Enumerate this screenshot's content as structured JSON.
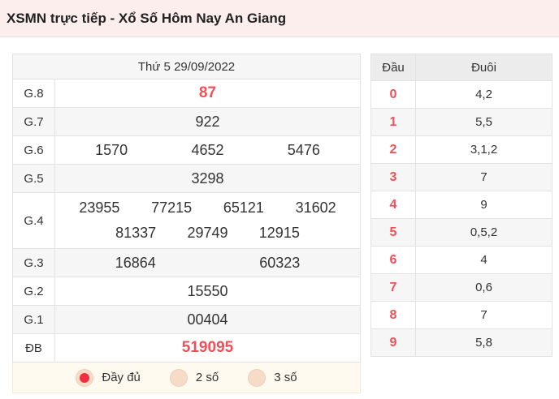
{
  "header": {
    "title": "XSMN trực tiếp - Xổ Số Hôm Nay An Giang"
  },
  "results": {
    "date": "Thứ 5 29/09/2022",
    "prizes": [
      {
        "label": "G.8",
        "numbers": [
          "87"
        ]
      },
      {
        "label": "G.7",
        "numbers": [
          "922"
        ]
      },
      {
        "label": "G.6",
        "numbers": [
          "1570",
          "4652",
          "5476"
        ]
      },
      {
        "label": "G.5",
        "numbers": [
          "3298"
        ]
      },
      {
        "label": "G.4",
        "numbers": [
          "23955",
          "77215",
          "65121",
          "31602",
          "81337",
          "29749",
          "12915"
        ]
      },
      {
        "label": "G.3",
        "numbers": [
          "16864",
          "60323"
        ]
      },
      {
        "label": "G.2",
        "numbers": [
          "15550"
        ]
      },
      {
        "label": "G.1",
        "numbers": [
          "00404"
        ]
      },
      {
        "label": "ĐB",
        "numbers": [
          "519095"
        ]
      }
    ],
    "options": [
      {
        "label": "Đầy đủ",
        "selected": true
      },
      {
        "label": "2 số",
        "selected": false
      },
      {
        "label": "3 số",
        "selected": false
      }
    ]
  },
  "loto": {
    "headers": [
      "Đầu",
      "Đuôi"
    ],
    "rows": [
      {
        "dau": "0",
        "duoi": "4,2"
      },
      {
        "dau": "1",
        "duoi": "5,5"
      },
      {
        "dau": "2",
        "duoi": "3,1,2"
      },
      {
        "dau": "3",
        "duoi": "7"
      },
      {
        "dau": "4",
        "duoi": "9"
      },
      {
        "dau": "5",
        "duoi": "0,5,2"
      },
      {
        "dau": "6",
        "duoi": "4"
      },
      {
        "dau": "7",
        "duoi": "0,6"
      },
      {
        "dau": "8",
        "duoi": "7"
      },
      {
        "dau": "9",
        "duoi": "5,8"
      }
    ]
  },
  "colors": {
    "accent": "#f0505a",
    "header_bg": "#fdeeee"
  }
}
